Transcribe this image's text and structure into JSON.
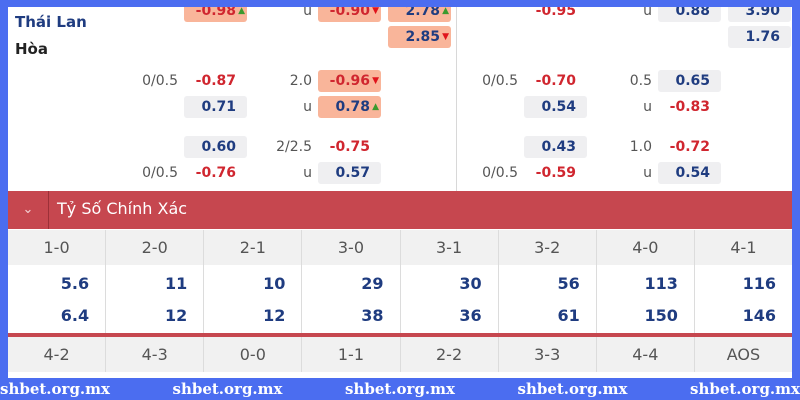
{
  "teams": {
    "home": "Thái Lan",
    "draw": "Hòa",
    "home_color": "#1f3c80",
    "draw_color": "#222222"
  },
  "colors": {
    "highlight": "#f9b59a",
    "neutral": "#efeff1",
    "negative": "#d0262f",
    "positive": "#1f3c80",
    "header": "#c6474f"
  },
  "left_market": [
    {
      "h": "",
      "o1": {
        "v": "-0.98",
        "s": "hl",
        "t": "up"
      },
      "ou": "u",
      "o2": {
        "v": "-0.90",
        "s": "hl",
        "t": "down"
      },
      "o3": {
        "v": "2.78",
        "s": "hl",
        "t": "up"
      }
    },
    {
      "h": "",
      "o1": null,
      "ou": "",
      "o2": null,
      "o3": {
        "v": "2.85",
        "s": "hl",
        "t": "down"
      }
    },
    {
      "h": "0/0.5",
      "o1": {
        "v": "-0.87",
        "s": "plain"
      },
      "ou": "2.0",
      "o2": {
        "v": "-0.96",
        "s": "hl",
        "t": "down"
      },
      "o3": null
    },
    {
      "h": "",
      "o1": {
        "v": "0.71",
        "s": "grey"
      },
      "ou": "u",
      "o2": {
        "v": "0.78",
        "s": "hl",
        "t": "up"
      },
      "o3": null
    },
    {
      "h": "",
      "o1": {
        "v": "0.60",
        "s": "grey"
      },
      "ou": "2/2.5",
      "o2": {
        "v": "-0.75",
        "s": "plain"
      },
      "o3": null
    },
    {
      "h": "0/0.5",
      "o1": {
        "v": "-0.76",
        "s": "plain"
      },
      "ou": "u",
      "o2": {
        "v": "0.57",
        "s": "grey"
      },
      "o3": null
    }
  ],
  "right_market": [
    {
      "h": "",
      "o1": {
        "v": "-0.95",
        "s": "plain"
      },
      "ou": "u",
      "o2": {
        "v": "0.88",
        "s": "grey"
      },
      "o3": {
        "v": "3.90",
        "s": "grey"
      }
    },
    {
      "h": "",
      "o1": null,
      "ou": "",
      "o2": null,
      "o3": {
        "v": "1.76",
        "s": "grey"
      }
    },
    {
      "h": "0/0.5",
      "o1": {
        "v": "-0.70",
        "s": "plain"
      },
      "ou": "0.5",
      "o2": {
        "v": "0.65",
        "s": "grey"
      },
      "o3": null
    },
    {
      "h": "",
      "o1": {
        "v": "0.54",
        "s": "grey"
      },
      "ou": "u",
      "o2": {
        "v": "-0.83",
        "s": "plain"
      },
      "o3": null
    },
    {
      "h": "",
      "o1": {
        "v": "0.43",
        "s": "grey"
      },
      "ou": "1.0",
      "o2": {
        "v": "-0.72",
        "s": "plain"
      },
      "o3": null
    },
    {
      "h": "0/0.5",
      "o1": {
        "v": "-0.59",
        "s": "plain"
      },
      "ou": "u",
      "o2": {
        "v": "0.54",
        "s": "grey"
      },
      "o3": null
    }
  ],
  "correct_score": {
    "title": "Tỷ Số Chính Xác",
    "chevron": "chevron-down-icon",
    "scores": [
      "1-0",
      "2-0",
      "2-1",
      "3-0",
      "3-1",
      "3-2",
      "4-0",
      "4-1"
    ],
    "odds_a": [
      "5.6",
      "11",
      "10",
      "29",
      "30",
      "56",
      "113",
      "116"
    ],
    "odds_b": [
      "6.4",
      "12",
      "12",
      "38",
      "36",
      "61",
      "150",
      "146"
    ],
    "scores2": [
      "4-2",
      "4-3",
      "0-0",
      "1-1",
      "2-2",
      "3-3",
      "4-4",
      "AOS"
    ]
  },
  "watermark": [
    "shbet.org.mx",
    "shbet.org.mx",
    "shbet.org.mx",
    "shbet.org.mx",
    "shbet.org.mx"
  ]
}
